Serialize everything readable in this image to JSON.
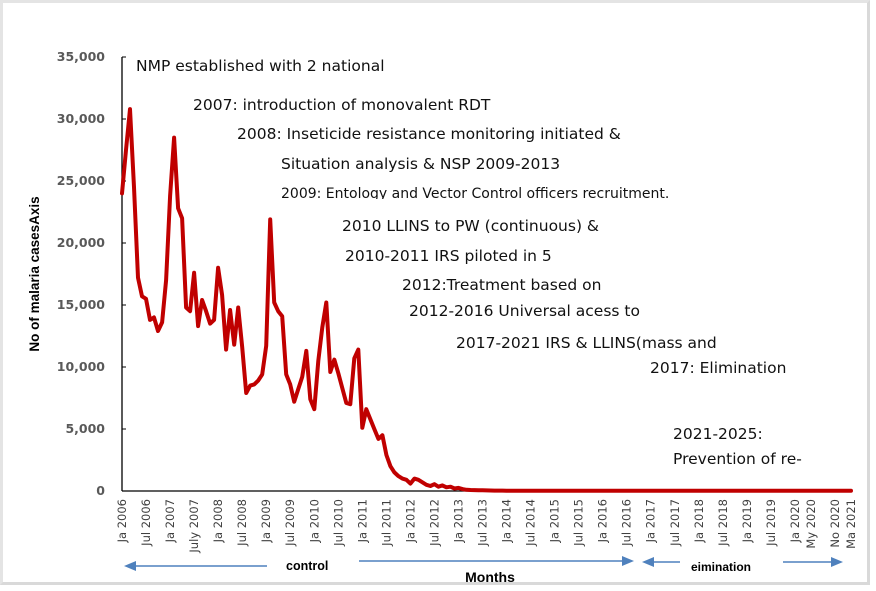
{
  "chart_data": {
    "type": "line",
    "title": "",
    "xlabel": "Months",
    "ylabel": "No of malaria casesAxis",
    "ylim": [
      0,
      35000
    ],
    "yticks": [
      "0",
      "5,000",
      "10,000",
      "15,000",
      "20,000",
      "25,000",
      "30,000",
      "35,000"
    ],
    "ytick_values": [
      0,
      5000,
      10000,
      15000,
      20000,
      25000,
      30000,
      35000
    ],
    "start_month": "2006-01",
    "n_months": 183,
    "x_tick_labels": [
      {
        "label": "Ja 2006",
        "month_index": 0
      },
      {
        "label": "Jul 2006",
        "month_index": 6
      },
      {
        "label": "Ja 2007",
        "month_index": 12
      },
      {
        "label": "July 2007",
        "month_index": 18
      },
      {
        "label": "Ja 2008",
        "month_index": 24
      },
      {
        "label": "Jul 2008",
        "month_index": 30
      },
      {
        "label": "Ja 2009",
        "month_index": 36
      },
      {
        "label": "Jul 2009",
        "month_index": 42
      },
      {
        "label": "Ja 2010",
        "month_index": 48
      },
      {
        "label": "Jul 2010",
        "month_index": 54
      },
      {
        "label": "Ja 2011",
        "month_index": 60
      },
      {
        "label": "Jul 2011",
        "month_index": 66
      },
      {
        "label": "Ja 2012",
        "month_index": 72
      },
      {
        "label": "Jul 2012",
        "month_index": 78
      },
      {
        "label": "Ja 2013",
        "month_index": 84
      },
      {
        "label": "Jul 2013",
        "month_index": 90
      },
      {
        "label": "Ja 2014",
        "month_index": 96
      },
      {
        "label": "Jul 2014",
        "month_index": 102
      },
      {
        "label": "Ja 2015",
        "month_index": 108
      },
      {
        "label": "Jul 2015",
        "month_index": 114
      },
      {
        "label": "Ja 2016",
        "month_index": 120
      },
      {
        "label": "Jul 2016",
        "month_index": 126
      },
      {
        "label": "Ja 2017",
        "month_index": 132
      },
      {
        "label": "Jul 2017",
        "month_index": 138
      },
      {
        "label": "Ja 2018",
        "month_index": 144
      },
      {
        "label": "Jul 2018",
        "month_index": 150
      },
      {
        "label": "Ja 2019",
        "month_index": 156
      },
      {
        "label": "Jul 2019",
        "month_index": 162
      },
      {
        "label": "Ja 2020",
        "month_index": 168
      },
      {
        "label": "My 2020",
        "month_index": 172
      },
      {
        "label": "No 2020",
        "month_index": 178
      },
      {
        "label": "Ma 2021",
        "month_index": 182
      }
    ],
    "series": [
      {
        "name": "Malaria cases",
        "color": "#c00000",
        "values": [
          24000,
          27500,
          30800,
          24500,
          17200,
          15700,
          15500,
          13800,
          14000,
          12900,
          13600,
          17000,
          23800,
          28500,
          22800,
          22000,
          14800,
          14500,
          17600,
          13300,
          15400,
          14500,
          13500,
          13800,
          18000,
          15800,
          11400,
          14600,
          11800,
          14800,
          11600,
          7900,
          8500,
          8600,
          8900,
          9400,
          11700,
          21900,
          15200,
          14500,
          14100,
          9400,
          8600,
          7200,
          8200,
          9200,
          11300,
          7400,
          6600,
          10500,
          13200,
          15200,
          9600,
          10600,
          9500,
          8300,
          7100,
          7000,
          10700,
          11400,
          5100,
          6600,
          5800,
          5000,
          4200,
          4500,
          2900,
          2000,
          1500,
          1200,
          1000,
          900,
          600,
          1000,
          900,
          700,
          500,
          400,
          550,
          350,
          450,
          300,
          350,
          200,
          250,
          150,
          100,
          80,
          70,
          60,
          60,
          50,
          40,
          30,
          30,
          30,
          25,
          25,
          20,
          20,
          20,
          20,
          20,
          20,
          20,
          20,
          20,
          20,
          20,
          20,
          20,
          20,
          20,
          20,
          20,
          20,
          20,
          20,
          20,
          20,
          20,
          20,
          20,
          20,
          20,
          20,
          20,
          20,
          20,
          20,
          20,
          20,
          20,
          20,
          20,
          20,
          20,
          20,
          20,
          20,
          20,
          20,
          20,
          20,
          20,
          20,
          20,
          20,
          20,
          20,
          20,
          20,
          20,
          20,
          20,
          20,
          20,
          20,
          20,
          20,
          20,
          20,
          20,
          20,
          20,
          20,
          20,
          20,
          20,
          20,
          20,
          20,
          20,
          20,
          20,
          20,
          20,
          20,
          20,
          20,
          20,
          20,
          20
        ]
      }
    ],
    "annotations": [
      "NMP established with 2 national",
      "2007: introduction of monovalent RDT",
      "2008: Inseticide resistance monitoring initiated &",
      "Situation analysis & NSP 2009-2013",
      "2009: Entology and Vector Control officers recruitment.",
      "2010 LLINS to PW (continuous) &",
      "2010-2011 IRS piloted in 5",
      "2012:Treatment based on",
      "2012-2016 Universal acess to",
      "2017-2021  IRS & LLINS(mass and",
      "2017: Elimination",
      "2021-2025:",
      "Prevention of re-"
    ],
    "phase_labels": {
      "control": "control",
      "elimination": "eimination"
    },
    "grid": false,
    "legend": "none",
    "arrow_color": "#4f81bd"
  }
}
